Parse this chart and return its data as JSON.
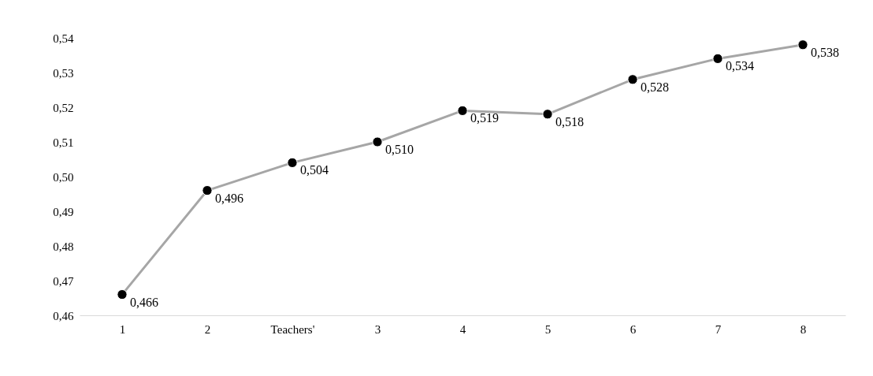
{
  "chart_data": {
    "type": "line",
    "categories": [
      "1",
      "2",
      "Teachers'",
      "3",
      "4",
      "5",
      "6",
      "7",
      "8"
    ],
    "series": [
      {
        "color": "#a6a6a6",
        "values": [
          0.466,
          0.496,
          0.504,
          0.51,
          0.519,
          0.518,
          0.528,
          0.534,
          0.538
        ],
        "value_labels": [
          "0,466",
          "0,496",
          "0,504",
          "0,510",
          "0,519",
          "0,518",
          "0,528",
          "0,534",
          "0,538"
        ]
      }
    ],
    "ylim": [
      0.46,
      0.54
    ],
    "yticks": [
      {
        "value": 0.46,
        "label": "0,46"
      },
      {
        "value": 0.47,
        "label": "0,47"
      },
      {
        "value": 0.48,
        "label": "0,48"
      },
      {
        "value": 0.49,
        "label": "0,49"
      },
      {
        "value": 0.5,
        "label": "0,50"
      },
      {
        "value": 0.51,
        "label": "0,51"
      },
      {
        "value": 0.52,
        "label": "0,52"
      },
      {
        "value": 0.53,
        "label": "0,53"
      },
      {
        "value": 0.54,
        "label": "0,54"
      }
    ],
    "marker": "circle",
    "line_style": "solid"
  }
}
